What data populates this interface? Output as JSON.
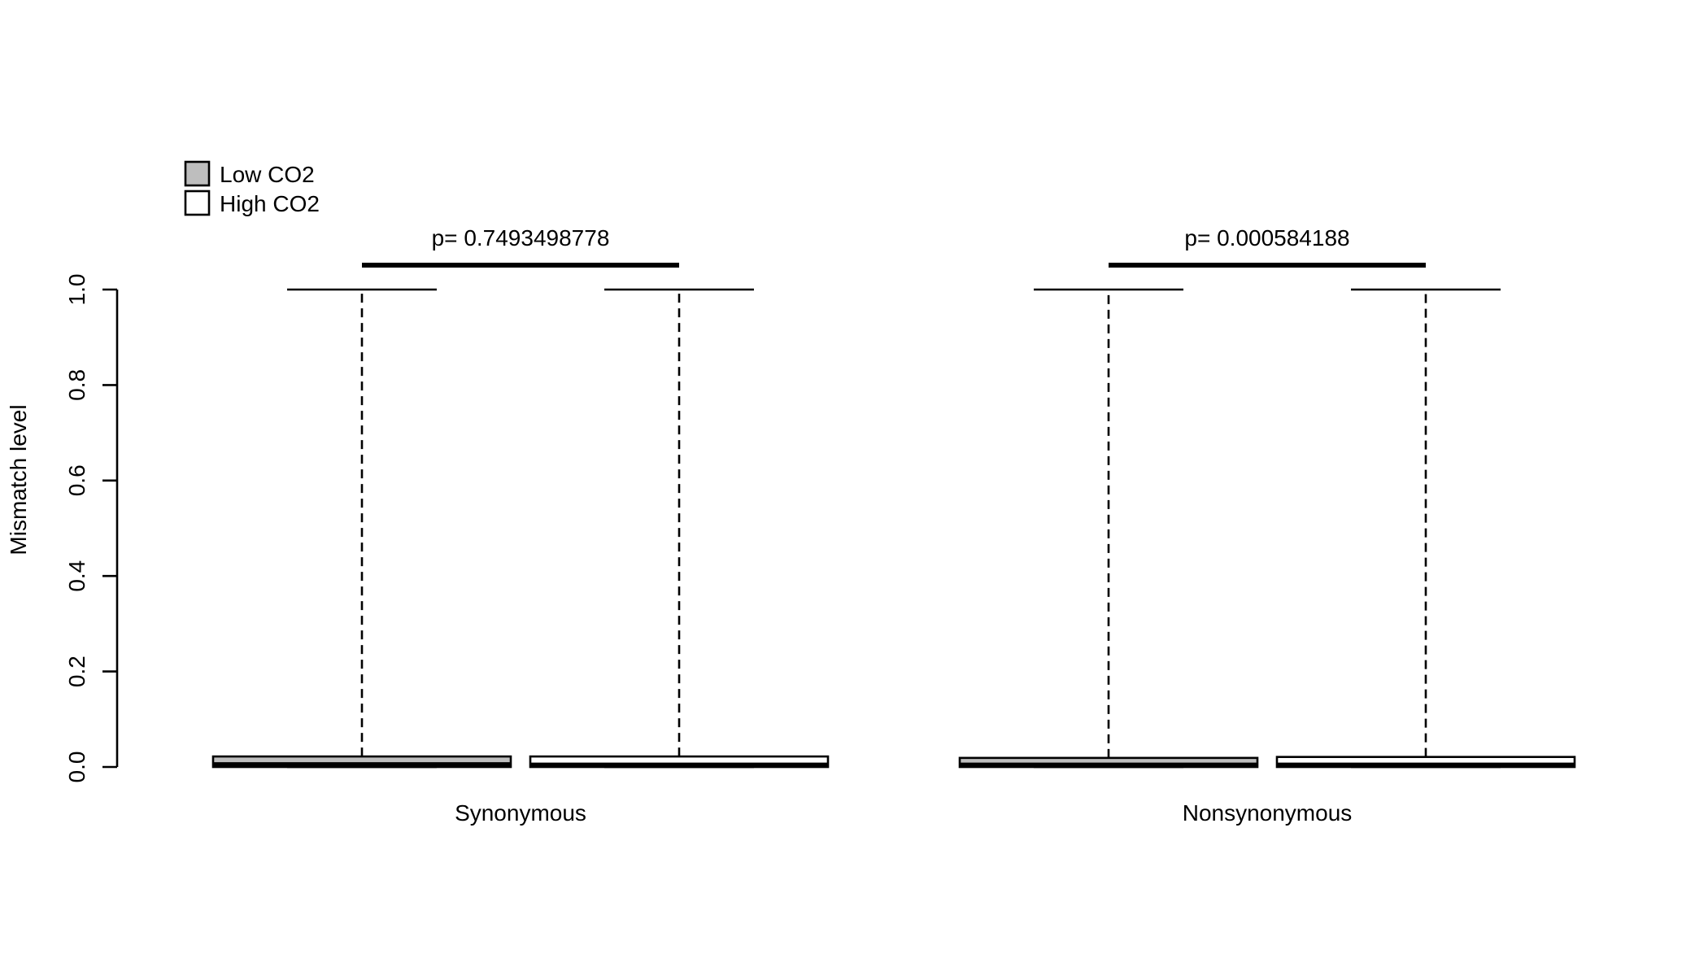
{
  "chart_data": {
    "type": "box",
    "ylabel": "Mismatch level",
    "ylim": [
      0,
      1
    ],
    "yticks": [
      0.0,
      0.2,
      0.4,
      0.6,
      0.8,
      1.0
    ],
    "ytick_labels": [
      "0.0",
      "0.2",
      "0.4",
      "0.6",
      "0.8",
      "1.0"
    ],
    "categories": [
      "Synonymous",
      "Nonsynonymous"
    ],
    "legend": {
      "position": "top-left",
      "entries": [
        {
          "label": "Low CO2",
          "color": "#bebebe"
        },
        {
          "label": "High CO2",
          "color": "#ffffff"
        }
      ]
    },
    "series": [
      {
        "name": "Low CO2",
        "color": "#bebebe",
        "boxes": [
          {
            "category": "Synonymous",
            "min": 0.0,
            "q1": 0.0,
            "median": 0.005,
            "q3": 0.022,
            "max": 1.0
          },
          {
            "category": "Nonsynonymous",
            "min": 0.0,
            "q1": 0.0,
            "median": 0.004,
            "q3": 0.019,
            "max": 1.0
          }
        ]
      },
      {
        "name": "High CO2",
        "color": "#ffffff",
        "boxes": [
          {
            "category": "Synonymous",
            "min": 0.0,
            "q1": 0.0,
            "median": 0.004,
            "q3": 0.022,
            "max": 1.0
          },
          {
            "category": "Nonsynonymous",
            "min": 0.0,
            "q1": 0.0,
            "median": 0.004,
            "q3": 0.021,
            "max": 1.0
          }
        ]
      }
    ],
    "annotations": [
      {
        "category": "Synonymous",
        "text": "p= 0.7493498778"
      },
      {
        "category": "Nonsynonymous",
        "text": "p= 0.000584188"
      }
    ]
  }
}
